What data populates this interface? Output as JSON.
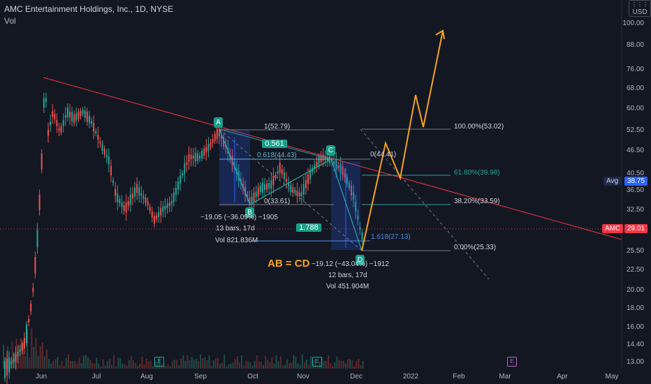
{
  "header": {
    "title": "AMC Entertainment Holdings, Inc., 1D, NYSE",
    "volume_label": "Vol"
  },
  "currency": "USD",
  "price_axis": [
    "100.00",
    "88.00",
    "76.00",
    "68.00",
    "60.00",
    "52.50",
    "46.50",
    "40.50",
    "36.50",
    "32.50",
    "28.50",
    "25.50",
    "22.50",
    "20.00",
    "18.00",
    "16.00",
    "14.40",
    "13.00"
  ],
  "time_axis": [
    "Jun",
    "Jul",
    "Aug",
    "Sep",
    "Oct",
    "Nov",
    "Dec",
    "2022",
    "Feb",
    "Mar",
    "Apr",
    "May"
  ],
  "badges": {
    "avg_label": "Avg",
    "avg_value": "38.75",
    "symbol": "AMC",
    "last_price": "29.01"
  },
  "points": {
    "a": "A",
    "b": "B",
    "c": "C",
    "d": "D"
  },
  "ratios": {
    "ab": "0.561",
    "cd": "1.788"
  },
  "fib_labels": {
    "ab_1": "1(52.79)",
    "ab_0618": "0.618(44.43)",
    "ab_0": "0(33.61)",
    "c_0": "0(44.41)",
    "c_1618": "1.618(27.13)",
    "f100": "100.00%(53.02)",
    "f618": "61.80%(39.98)",
    "f382": "38.20%(33.59)",
    "f0": "0.00%(25.33)"
  },
  "measure_ab": {
    "change": "−19.05 (−36.09%) −1905",
    "bars": "13 bars, 17d",
    "vol": "Vol 821.836M"
  },
  "measure_cd": {
    "change": "−19.12 (−43.04%) −1912",
    "bars": "12 bars, 17d",
    "vol": "Vol 451.904M"
  },
  "pattern_note": "AB = CD",
  "events": {
    "e": "E"
  },
  "colors": {
    "bg": "#131722",
    "up": "#26a69a",
    "down": "#ef5350",
    "trend": "#f23645",
    "projection": "#f7a21b",
    "fib_teal": "#26a69a"
  },
  "chart_data": {
    "type": "candlestick",
    "title": "AMC Entertainment Holdings, Inc., 1D, NYSE",
    "scale": "log",
    "ylim": [
      12.5,
      112
    ],
    "pattern": "AB=CD",
    "points": {
      "A": 52.79,
      "B": 33.61,
      "C": 44.41,
      "D": 25.33
    },
    "last_price": 29.01,
    "average": 38.75,
    "fib_retracement": [
      {
        "level": "100.00%",
        "price": 53.02
      },
      {
        "level": "61.80%",
        "price": 39.98
      },
      {
        "level": "38.20%",
        "price": 33.59
      },
      {
        "level": "0.00%",
        "price": 25.33
      }
    ]
  }
}
